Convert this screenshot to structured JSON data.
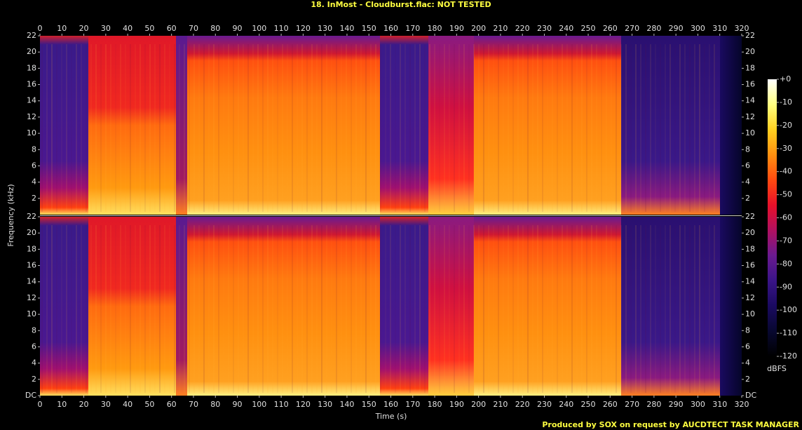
{
  "chart_data": {
    "type": "spectrogram",
    "title": "18. InMost - Cloudburst.flac: NOT TESTED",
    "xlabel": "Time (s)",
    "ylabel": "Frequency (kHz)",
    "xlim": [
      0,
      320
    ],
    "xticks": [
      0,
      10,
      20,
      30,
      40,
      50,
      60,
      70,
      80,
      90,
      100,
      110,
      120,
      130,
      140,
      150,
      160,
      170,
      180,
      190,
      200,
      210,
      220,
      230,
      240,
      250,
      260,
      270,
      280,
      290,
      300,
      310,
      320
    ],
    "panels": [
      {
        "ylim": [
          0,
          22
        ],
        "yticks": [
          2,
          4,
          6,
          8,
          10,
          12,
          14,
          16,
          18,
          20,
          22
        ]
      },
      {
        "ylim": [
          0,
          22
        ],
        "yticks": [
          {
            "value": 0,
            "label": "DC"
          },
          2,
          4,
          6,
          8,
          10,
          12,
          14,
          16,
          18,
          20,
          22
        ]
      }
    ],
    "colorbar": {
      "label": "dBFS",
      "lim": [
        -120,
        0
      ],
      "ticks": [
        {
          "value": 0,
          "label": "+0"
        },
        -10,
        -20,
        -30,
        -40,
        -50,
        -60,
        -70,
        -80,
        -90,
        -100,
        -110,
        -120
      ],
      "colors": [
        "#ffffff",
        "#ffff80",
        "#ffd020",
        "#ff9010",
        "#ff4a10",
        "#e8102a",
        "#b01060",
        "#6a1a90",
        "#3a1488",
        "#1a0a60",
        "#080830",
        "#000000"
      ]
    },
    "footer": "Produced by SOX on request by AUCDTECT TASK MANAGER"
  }
}
